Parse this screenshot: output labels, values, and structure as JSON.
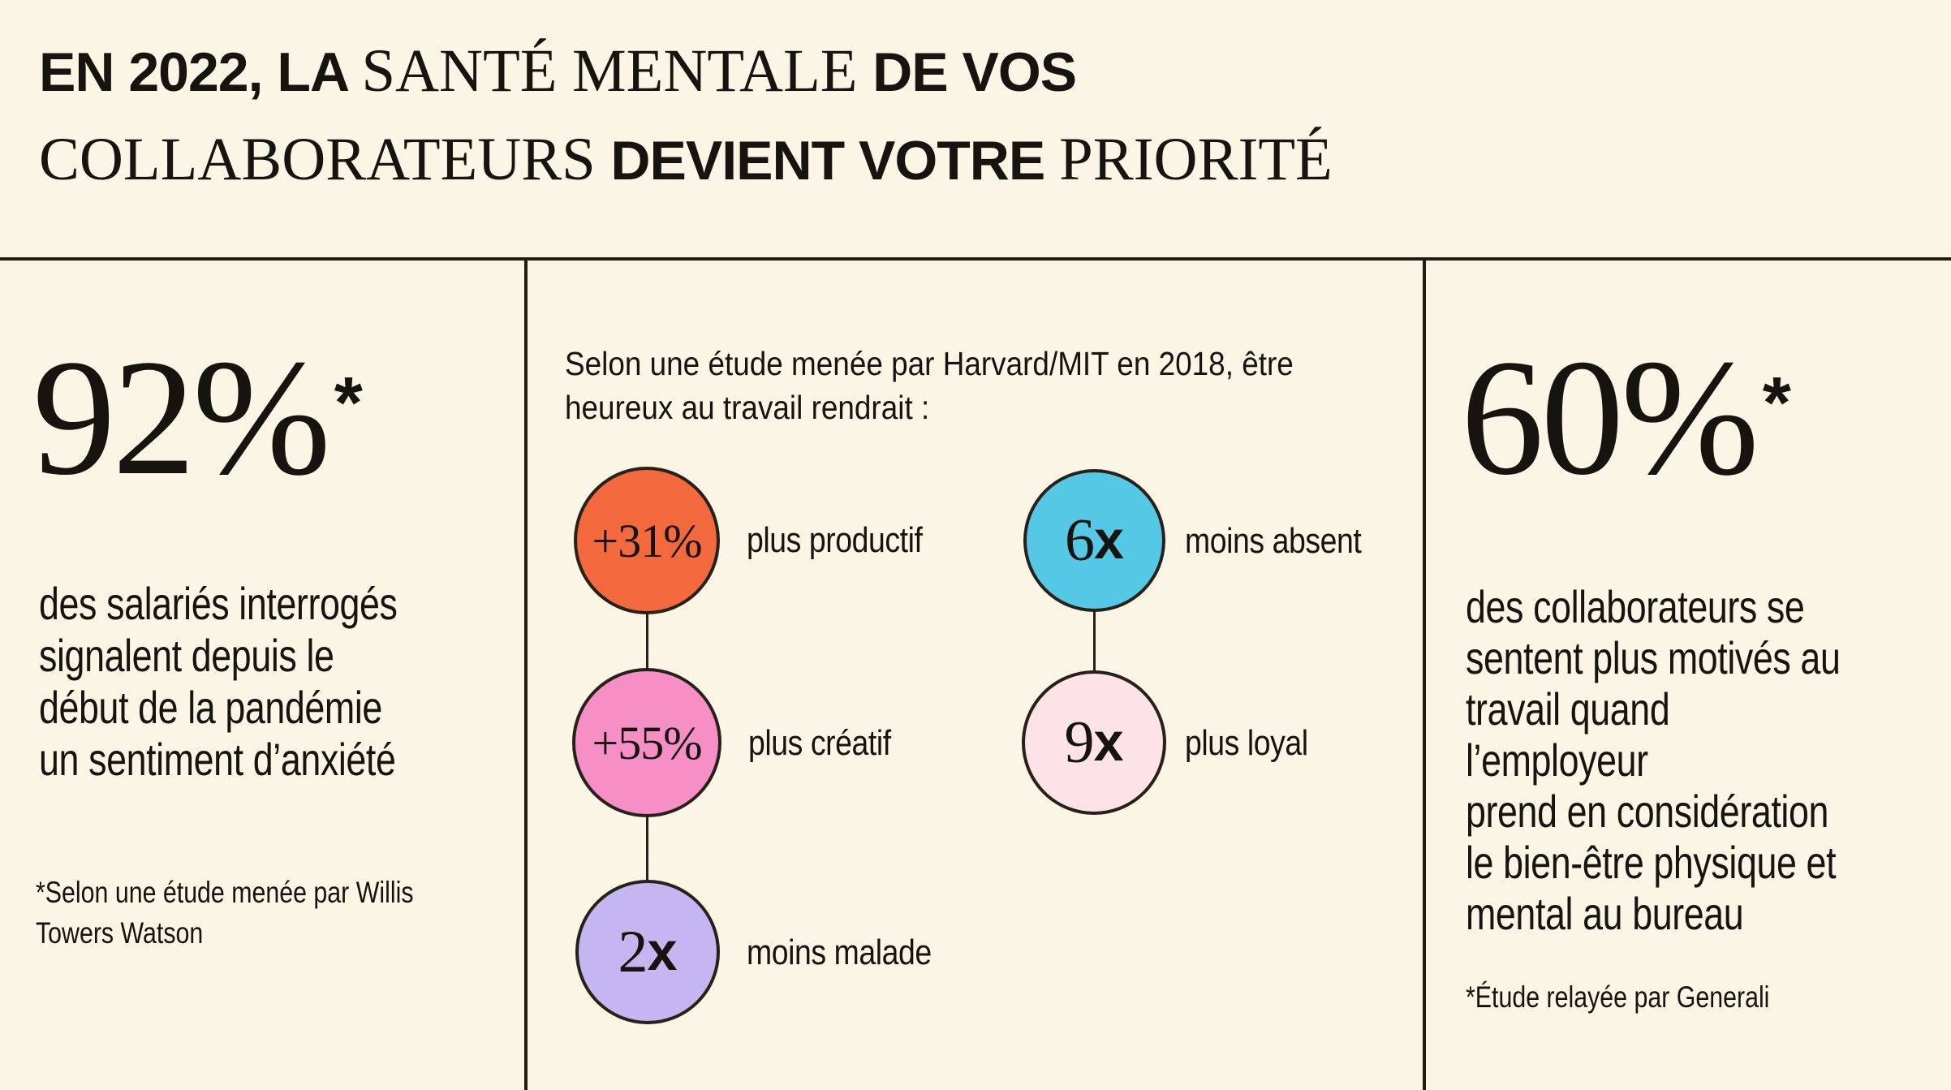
{
  "title": {
    "line1": {
      "seg1": "EN 2022, LA ",
      "seg2": "SANTÉ MENTALE ",
      "seg3": "DE VOS"
    },
    "line2": {
      "seg1": "COLLABORATEURS ",
      "seg2": "DEVIENT VOTRE ",
      "seg3": "PRIORITÉ"
    }
  },
  "left_panel": {
    "stat_value": "92%",
    "stat_asterisk": "*",
    "description": "des salariés interrogés\nsignalent depuis le\ndébut de la pandémie\nun sentiment d’anxiété",
    "footnote": "*Selon une étude menée par Willis\nTowers Watson"
  },
  "middle_panel": {
    "intro": "Selon une étude menée par Harvard/MIT en 2018, être\nheureux au travail rendrait :",
    "stats": [
      {
        "value": "+31%",
        "suffix": "",
        "label": "plus productif",
        "color": "#F2693E"
      },
      {
        "value": "6",
        "suffix": "x",
        "label": "moins absent",
        "color": "#55C8E6"
      },
      {
        "value": "+55%",
        "suffix": "",
        "label": "plus créatif",
        "color": "#F78FC7"
      },
      {
        "value": "9",
        "suffix": "x",
        "label": "plus loyal",
        "color": "#FBE3E7"
      },
      {
        "value": "2",
        "suffix": "x",
        "label": "moins malade",
        "color": "#C4B6F0"
      }
    ]
  },
  "right_panel": {
    "stat_value": "60%",
    "stat_asterisk": "*",
    "description": "des collaborateurs se\nsentent plus motivés au\ntravail quand l’employeur\nprend en considération\nle bien-être physique et\nmental au bureau",
    "footnote": "*Étude relayée par Generali"
  },
  "colors": {
    "background": "#FAF5E4",
    "ink": "#17130E",
    "rule": "#211D15",
    "circle_outline": "#27211A",
    "orange": "#F2693E",
    "cyan": "#55C8E6",
    "pink": "#F78FC7",
    "light_pink": "#FBE3E7",
    "lavender": "#C4B6F0"
  }
}
